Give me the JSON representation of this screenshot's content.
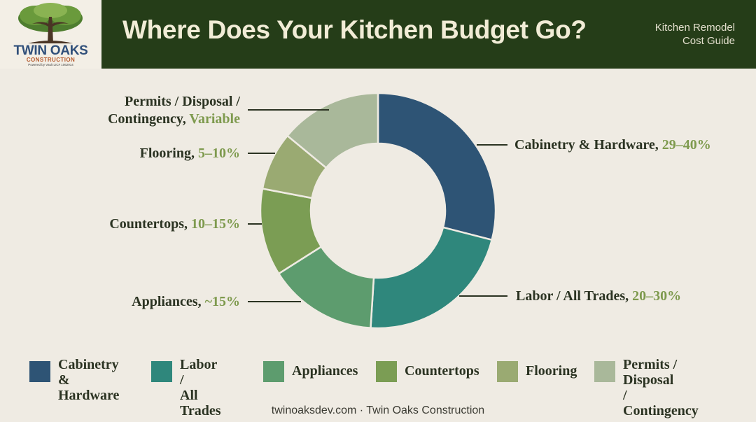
{
  "header": {
    "logo": {
      "name": "TWIN OAKS",
      "sub": "CONSTRUCTION",
      "tagline": "Powered by Vault LIC# 1062914"
    },
    "title": "Where Does Your Kitchen Budget Go?",
    "guide_line1": "Kitchen Remodel",
    "guide_line2": "Cost Guide"
  },
  "colors": {
    "header_bg": "#253d18",
    "page_bg": "#efebe3",
    "percent_text": "#7e9a4e",
    "leader_line": "#2b3322"
  },
  "chart_data": {
    "type": "pie",
    "variant": "donut",
    "categories": [
      "Cabinetry & Hardware",
      "Labor / All Trades",
      "Appliances",
      "Countertops",
      "Flooring",
      "Permits / Disposal / Contingency"
    ],
    "values": [
      29,
      22,
      15,
      12,
      8,
      14
    ],
    "colors": [
      "#2e5475",
      "#2f877c",
      "#5d9c6e",
      "#7b9d54",
      "#9aaa72",
      "#a9b89a"
    ],
    "callouts": [
      {
        "label": "Cabinetry & Hardware, ",
        "pct": "29–40%"
      },
      {
        "label": "Labor / All Trades, ",
        "pct": "20–30%"
      },
      {
        "label": "Appliances, ",
        "pct": "~15%"
      },
      {
        "label": "Countertops, ",
        "pct": "10–15%"
      },
      {
        "label": "Flooring, ",
        "pct": "5–10%"
      },
      {
        "line1": "Permits / Disposal /",
        "label": "Contingency, ",
        "pct": "Variable"
      }
    ],
    "legend": [
      {
        "line1": "Cabinetry &",
        "line2": "Hardware"
      },
      {
        "line1": "Labor /",
        "line2": "All Trades"
      },
      {
        "line1": "Appliances"
      },
      {
        "line1": "Countertops"
      },
      {
        "line1": "Flooring"
      },
      {
        "line1": "Permits / Disposal",
        "line2": "/ Contingency"
      }
    ],
    "legend_placement": "bottom"
  },
  "footer": {
    "text": "twinoaksdev.com · Twin Oaks Construction"
  }
}
